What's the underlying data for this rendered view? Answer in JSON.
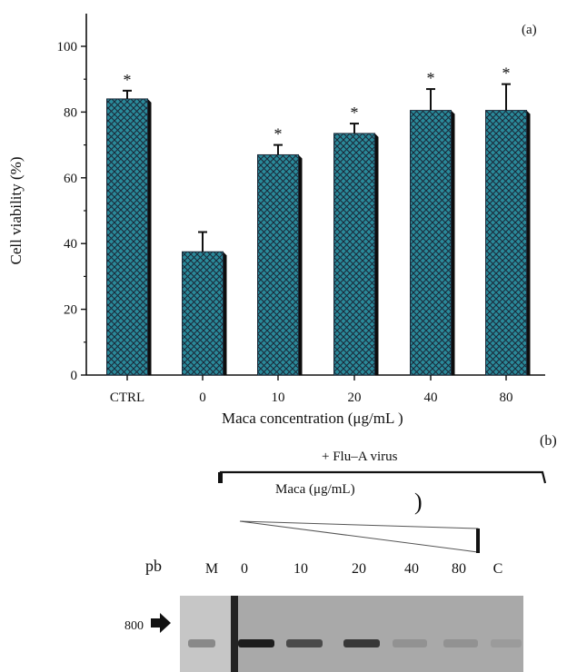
{
  "chart_data": [
    {
      "type": "bar",
      "panel_label": "(a)",
      "categories": [
        "CTRL",
        "0",
        "10",
        "20",
        "40",
        "80"
      ],
      "values": [
        84,
        37.5,
        67,
        73.5,
        80.5,
        80.5
      ],
      "errors": [
        2.5,
        6,
        3,
        3,
        6.5,
        8
      ],
      "significance": [
        "*",
        "",
        "*",
        "*",
        "*",
        "*"
      ],
      "xlabel": "Maca concentration (μg/mL )",
      "ylabel": "Cell viability (%)",
      "ylim": [
        0,
        100
      ],
      "yticks": [
        0,
        20,
        40,
        60,
        80,
        100
      ],
      "grid": false,
      "legend": "none",
      "bar_color": "#2a8a9a",
      "hatch_color": "#1a2a3a"
    },
    {
      "type": "gel",
      "panel_label": "(b)",
      "treatment_label": "+ Flu–A virus",
      "maca_label": "Maca (μg/mL)",
      "gradient_mark": ")",
      "row_header": "pb",
      "lanes": [
        "M",
        "0",
        "10",
        "20",
        "40",
        "80",
        "C"
      ],
      "marker": "800",
      "band_intensity": [
        0.35,
        0.95,
        0.7,
        0.8,
        0.3,
        0.3,
        0.25
      ]
    }
  ]
}
